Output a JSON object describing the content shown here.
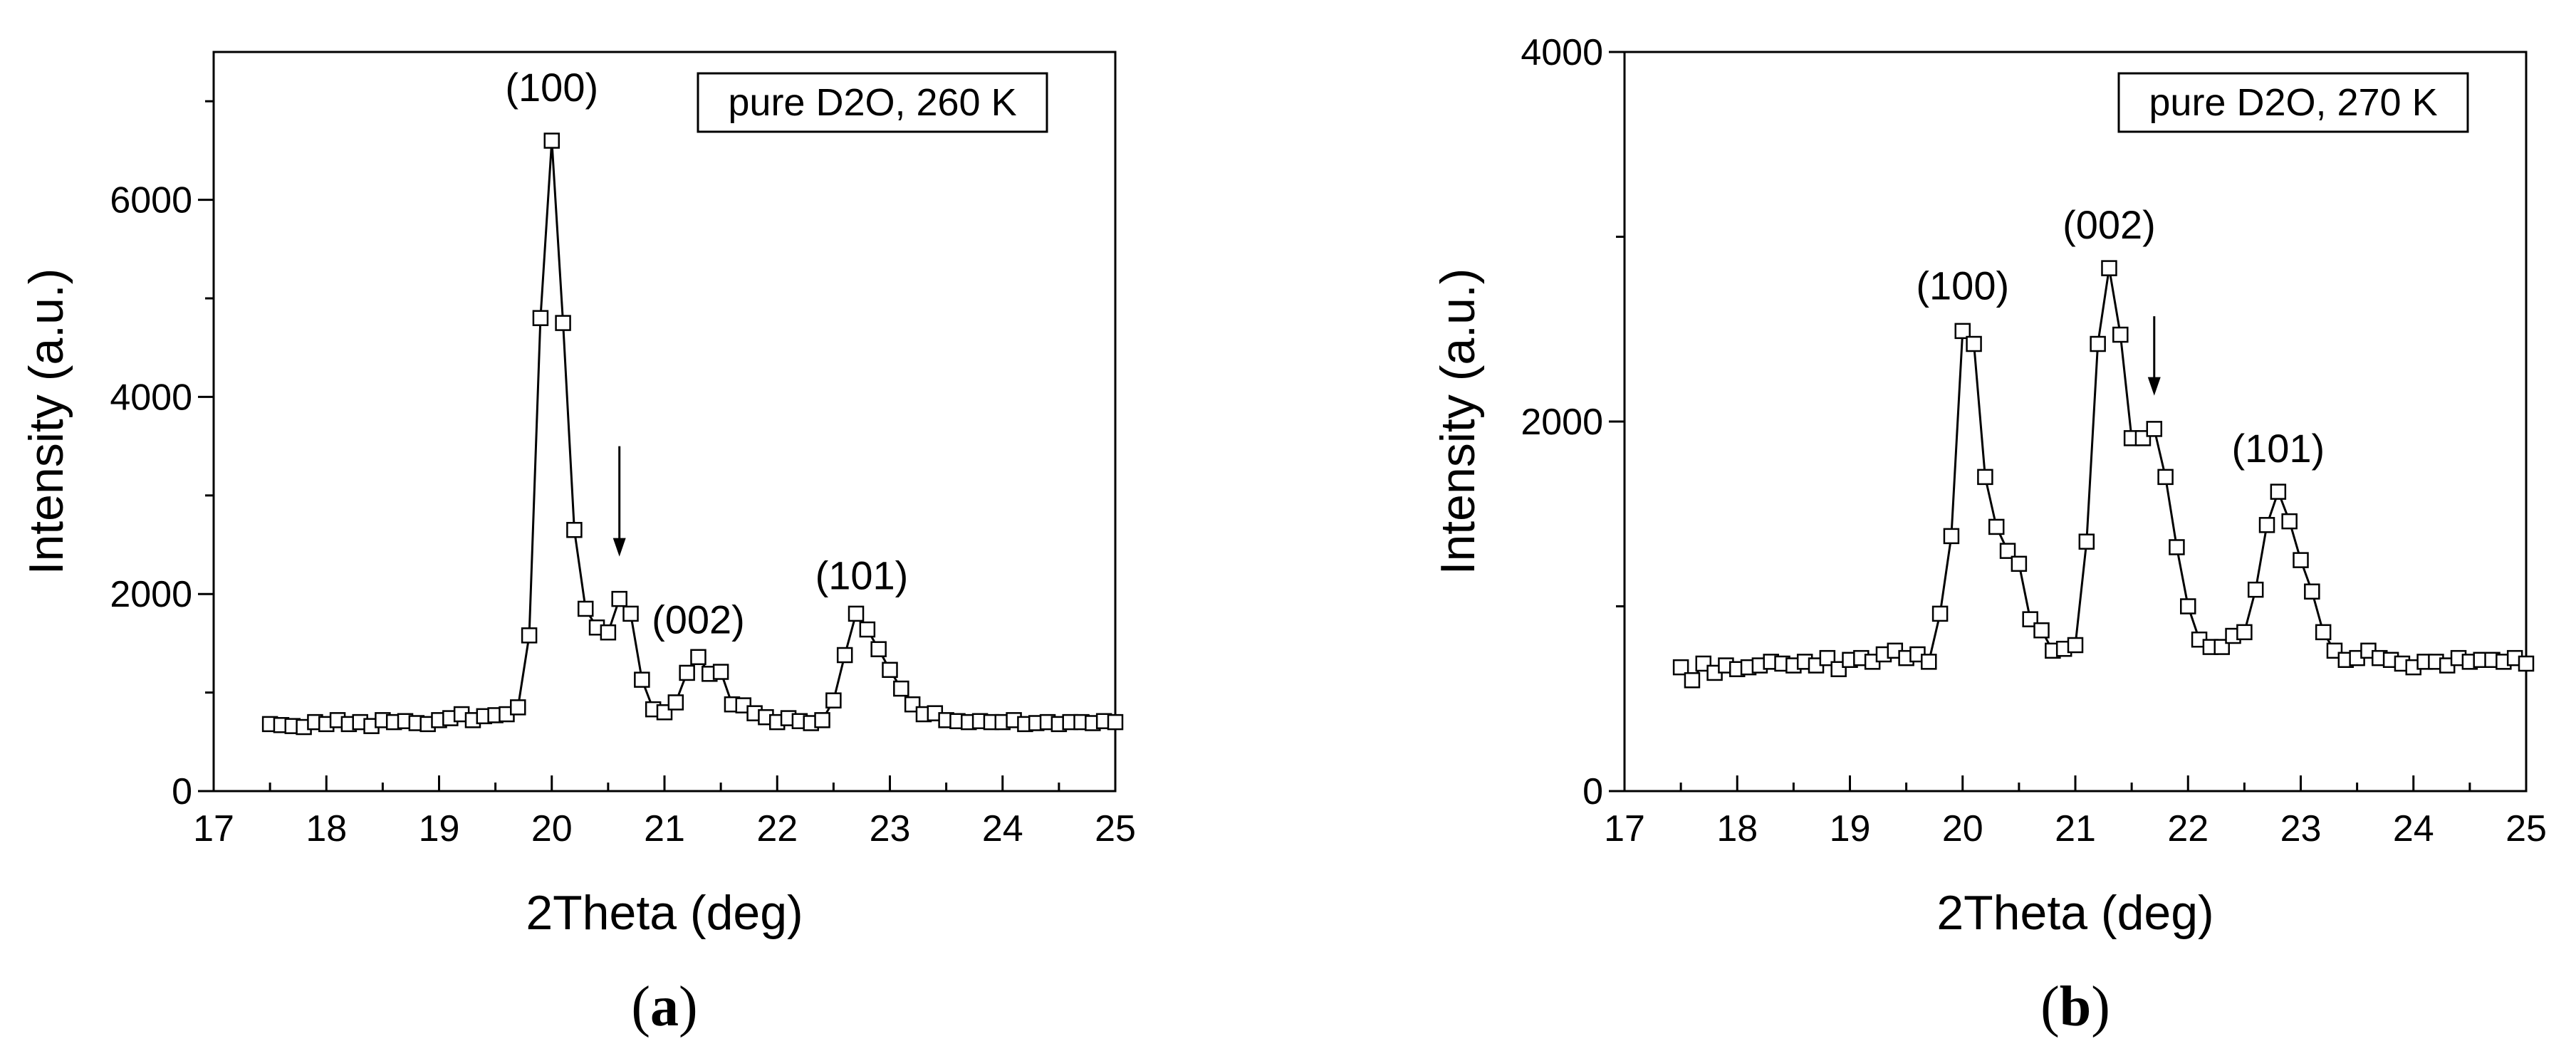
{
  "chart_data": [
    {
      "type": "line",
      "panel_label": "a",
      "legend_text": "pure D2O, 260 K",
      "xlabel": "2Theta (deg)",
      "ylabel": "Intensity (a.u.)",
      "xlim": [
        17,
        25
      ],
      "ylim": [
        0,
        7500
      ],
      "xticks": [
        17,
        18,
        19,
        20,
        21,
        22,
        23,
        24,
        25
      ],
      "yticks": [
        0,
        2000,
        4000,
        6000
      ],
      "annotations": [
        {
          "text": "(100)",
          "x": 20.0,
          "y": 7000
        },
        {
          "text": "(002)",
          "x": 21.3,
          "y": 1600
        },
        {
          "text": "(101)",
          "x": 22.75,
          "y": 2050
        }
      ],
      "arrow": {
        "x": 20.6,
        "y_from": 3500,
        "y_to": 2380
      },
      "x": [
        17.5,
        17.6,
        17.7,
        17.8,
        17.9,
        18.0,
        18.1,
        18.2,
        18.3,
        18.4,
        18.5,
        18.6,
        18.7,
        18.8,
        18.9,
        19.0,
        19.1,
        19.2,
        19.3,
        19.4,
        19.5,
        19.6,
        19.7,
        19.8,
        19.9,
        20.0,
        20.1,
        20.2,
        20.3,
        20.4,
        20.5,
        20.6,
        20.7,
        20.8,
        20.9,
        21.0,
        21.1,
        21.2,
        21.3,
        21.4,
        21.5,
        21.6,
        21.7,
        21.8,
        21.9,
        22.0,
        22.1,
        22.2,
        22.3,
        22.4,
        22.5,
        22.6,
        22.7,
        22.8,
        22.9,
        23.0,
        23.1,
        23.2,
        23.3,
        23.4,
        23.5,
        23.6,
        23.7,
        23.8,
        23.9,
        24.0,
        24.1,
        24.2,
        24.3,
        24.4,
        24.5,
        24.6,
        24.7,
        24.8,
        24.9,
        25.0
      ],
      "y": [
        680,
        670,
        660,
        650,
        700,
        680,
        720,
        680,
        700,
        660,
        720,
        700,
        710,
        690,
        680,
        720,
        740,
        780,
        720,
        760,
        770,
        780,
        850,
        1580,
        4800,
        6600,
        4750,
        2650,
        1850,
        1660,
        1610,
        1950,
        1800,
        1130,
        830,
        800,
        900,
        1200,
        1360,
        1190,
        1210,
        880,
        870,
        790,
        750,
        700,
        740,
        710,
        690,
        720,
        920,
        1380,
        1800,
        1640,
        1440,
        1230,
        1040,
        880,
        780,
        790,
        720,
        710,
        700,
        710,
        700,
        700,
        720,
        680,
        690,
        700,
        680,
        700,
        700,
        690,
        710,
        700
      ]
    },
    {
      "type": "line",
      "panel_label": "b",
      "legend_text": "pure D2O, 270 K",
      "xlabel": "2Theta (deg)",
      "ylabel": "Intensity (a.u.)",
      "xlim": [
        17,
        25
      ],
      "ylim": [
        0,
        4000
      ],
      "xticks": [
        17,
        18,
        19,
        20,
        21,
        22,
        23,
        24,
        25
      ],
      "yticks": [
        0,
        2000,
        4000
      ],
      "annotations": [
        {
          "text": "(100)",
          "x": 20.0,
          "y": 2660
        },
        {
          "text": "(002)",
          "x": 21.3,
          "y": 2990
        },
        {
          "text": "(101)",
          "x": 22.8,
          "y": 1780
        }
      ],
      "arrow": {
        "x": 21.7,
        "y_from": 2570,
        "y_to": 2140
      },
      "x": [
        17.5,
        17.6,
        17.7,
        17.8,
        17.9,
        18.0,
        18.1,
        18.2,
        18.3,
        18.4,
        18.5,
        18.6,
        18.7,
        18.8,
        18.9,
        19.0,
        19.1,
        19.2,
        19.3,
        19.4,
        19.5,
        19.6,
        19.7,
        19.8,
        19.9,
        20.0,
        20.1,
        20.2,
        20.3,
        20.4,
        20.5,
        20.6,
        20.7,
        20.8,
        20.9,
        21.0,
        21.1,
        21.2,
        21.3,
        21.4,
        21.5,
        21.6,
        21.7,
        21.8,
        21.9,
        22.0,
        22.1,
        22.2,
        22.3,
        22.4,
        22.5,
        22.6,
        22.7,
        22.8,
        22.9,
        23.0,
        23.1,
        23.2,
        23.3,
        23.4,
        23.5,
        23.6,
        23.7,
        23.8,
        23.9,
        24.0,
        24.1,
        24.2,
        24.3,
        24.4,
        24.5,
        24.6,
        24.7,
        24.8,
        24.9,
        25.0
      ],
      "y": [
        670,
        600,
        690,
        640,
        680,
        660,
        670,
        680,
        700,
        690,
        680,
        700,
        680,
        720,
        660,
        710,
        720,
        700,
        740,
        760,
        720,
        740,
        700,
        960,
        1380,
        2490,
        2420,
        1700,
        1430,
        1300,
        1230,
        930,
        870,
        760,
        770,
        790,
        1350,
        2420,
        2830,
        2470,
        1910,
        1910,
        1960,
        1700,
        1320,
        1000,
        820,
        780,
        780,
        840,
        860,
        1090,
        1440,
        1620,
        1460,
        1250,
        1080,
        860,
        760,
        710,
        720,
        760,
        720,
        710,
        690,
        670,
        700,
        700,
        680,
        720,
        700,
        710,
        710,
        700,
        720,
        690
      ]
    }
  ]
}
